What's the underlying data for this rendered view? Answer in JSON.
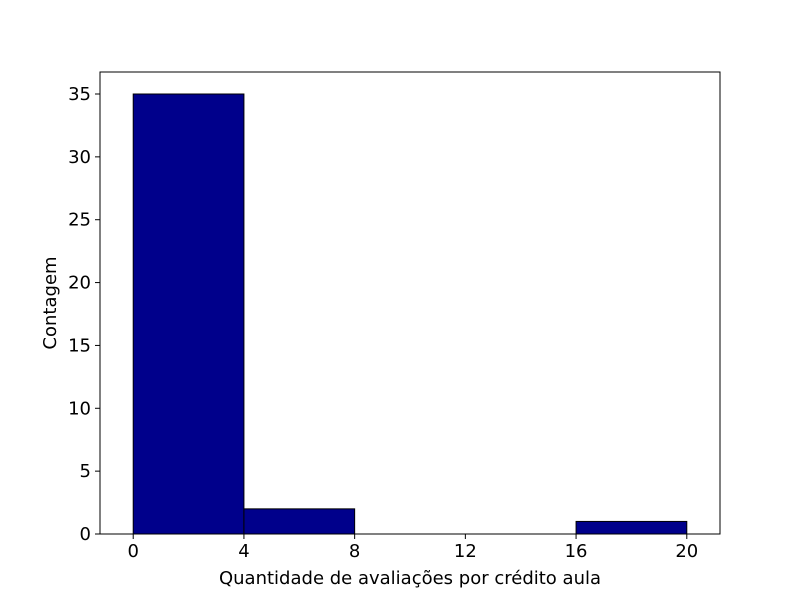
{
  "chart_data": {
    "type": "bar",
    "chart_kind": "histogram",
    "title": "",
    "xlabel": "Quantidade de avaliações por crédito aula",
    "ylabel": "Contagem",
    "bins": [
      {
        "start": 0,
        "end": 4,
        "count": 35
      },
      {
        "start": 4,
        "end": 8,
        "count": 2
      },
      {
        "start": 8,
        "end": 12,
        "count": 0
      },
      {
        "start": 12,
        "end": 16,
        "count": 0
      },
      {
        "start": 16,
        "end": 20,
        "count": 1
      }
    ],
    "xlim": [
      -1.2,
      21.2
    ],
    "ylim": [
      0,
      36.75
    ],
    "xticks": [
      0,
      4,
      8,
      12,
      16,
      20
    ],
    "yticks": [
      0,
      5,
      10,
      15,
      20,
      25,
      30,
      35
    ],
    "bar_color": "#00008b",
    "edge_color": "#000000",
    "grid": false,
    "legend": "none"
  }
}
